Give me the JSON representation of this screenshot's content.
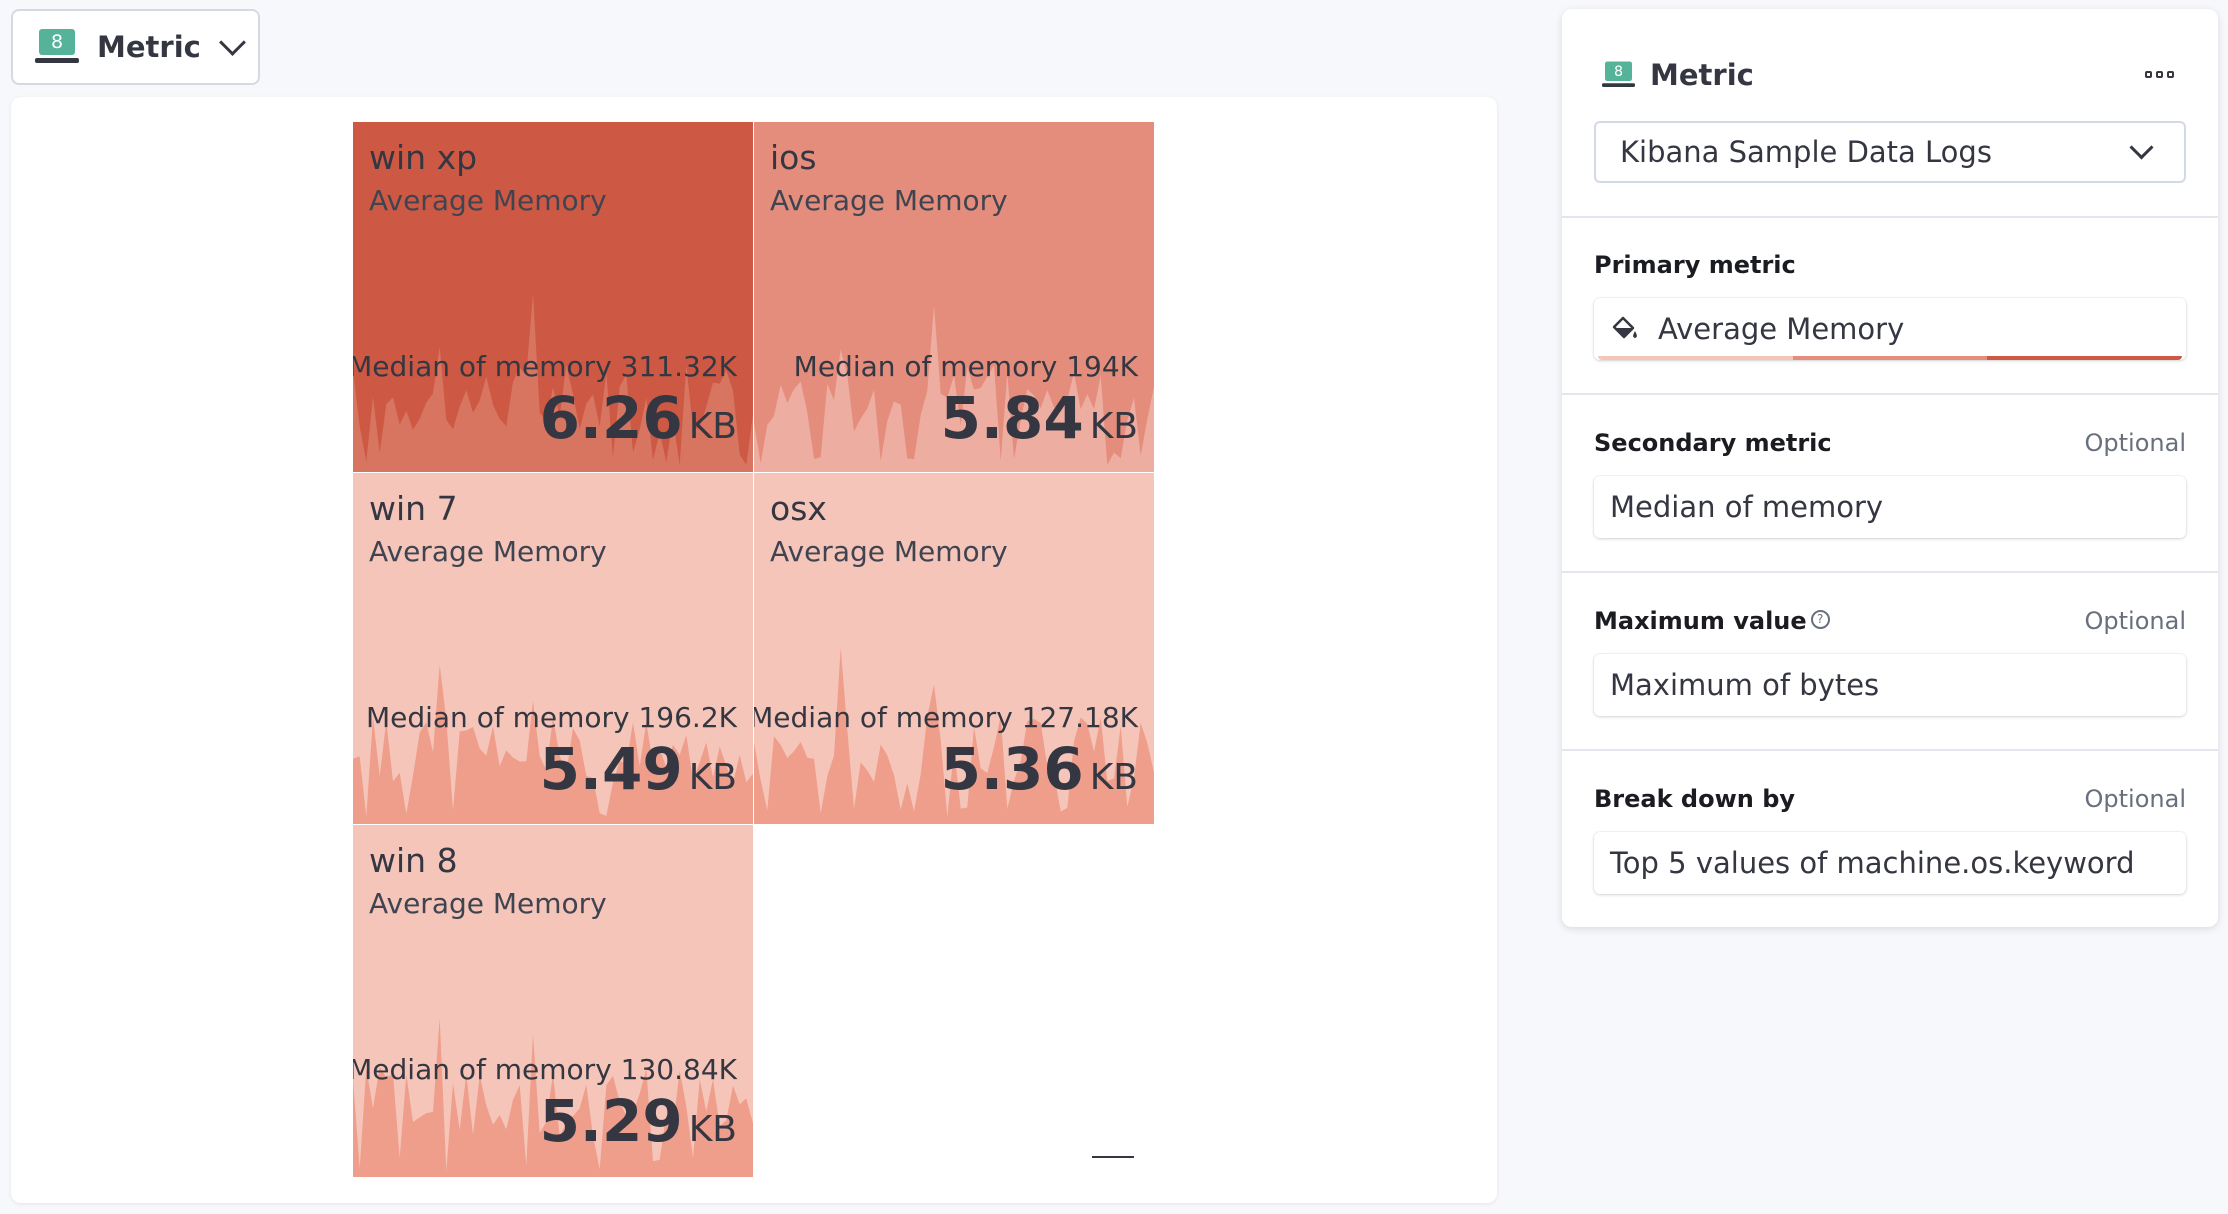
{
  "switcher": {
    "label": "Metric",
    "icon_text": "8"
  },
  "tiles": [
    {
      "name": "win xp",
      "sub": "Average Memory",
      "secondary": "Median of memory 311.32K",
      "value": "6.26",
      "unit": "KB",
      "bg": "#cd5944",
      "spark": "#d87561"
    },
    {
      "name": "ios",
      "sub": "Average Memory",
      "secondary": "Median of memory 194K",
      "value": "5.84",
      "unit": "KB",
      "bg": "#e58d7c",
      "spark": "#edaea1"
    },
    {
      "name": "win 7",
      "sub": "Average Memory",
      "secondary": "Median of memory 196.2K",
      "value": "5.49",
      "unit": "KB",
      "bg": "#f5c5b9",
      "spark": "#ee9e8b"
    },
    {
      "name": "osx",
      "sub": "Average Memory",
      "secondary": "Median of memory 127.18K",
      "value": "5.36",
      "unit": "KB",
      "bg": "#f5c5b9",
      "spark": "#ee9e8b"
    },
    {
      "name": "win 8",
      "sub": "Average Memory",
      "secondary": "Median of memory 130.84K",
      "value": "5.29",
      "unit": "KB",
      "bg": "#f5c5b9",
      "spark": "#ee9e8b"
    }
  ],
  "config": {
    "title": "Metric",
    "icon_text": "8",
    "datasource": "Kibana Sample Data Logs",
    "primary": {
      "label": "Primary metric",
      "value": "Average Memory"
    },
    "secondary": {
      "label": "Secondary metric",
      "optional": "Optional",
      "value": "Median of memory"
    },
    "maximum": {
      "label": "Maximum value",
      "optional": "Optional",
      "value": "Maximum of bytes",
      "help": "?"
    },
    "breakdown": {
      "label": "Break down by",
      "optional": "Optional",
      "value": "Top 5 values of machine.os.keyword"
    },
    "palette": [
      "#f5c5b9",
      "#e58d7c",
      "#cd5944"
    ]
  }
}
